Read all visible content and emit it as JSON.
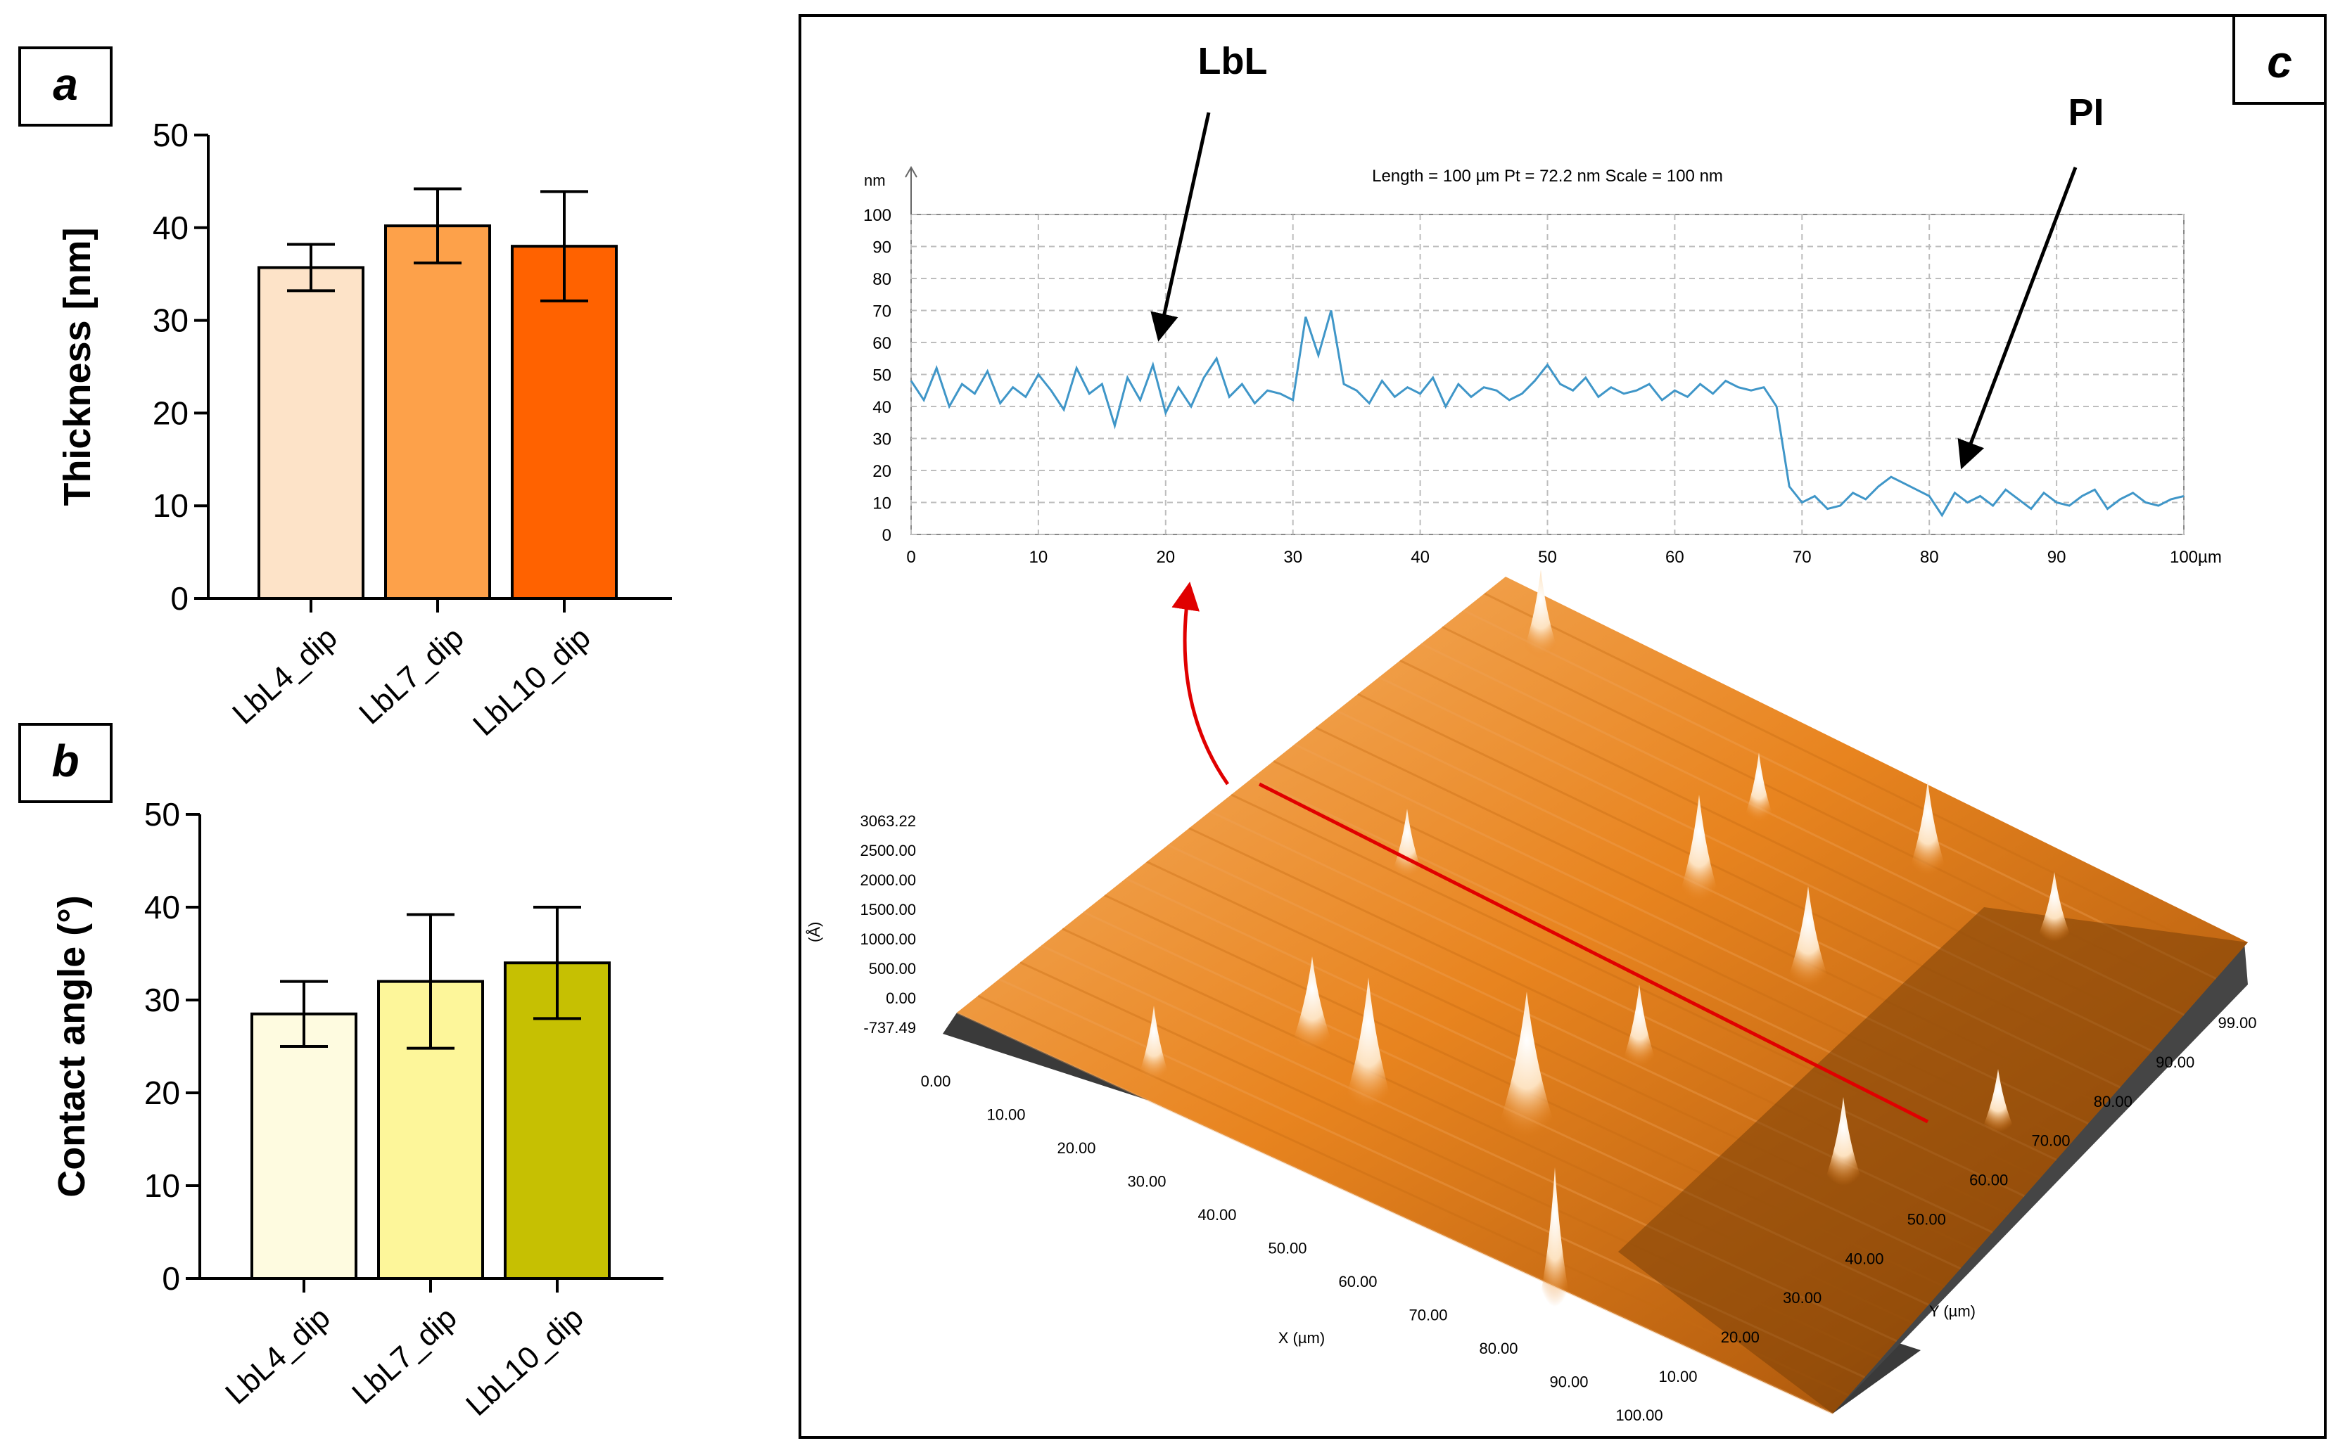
{
  "panels": {
    "a": "a",
    "b": "b",
    "c": "c"
  },
  "chart_data": [
    {
      "id": "a",
      "type": "bar",
      "title": "",
      "ylabel": "Thickness [nm]",
      "xlabel": "",
      "ylim": [
        0,
        50
      ],
      "yticks": [
        "0",
        "10",
        "20",
        "30",
        "40",
        "50"
      ],
      "categories": [
        "LbL4_dip",
        "LbL7_dip",
        "LbL10_dip"
      ],
      "values": [
        35.7,
        40.2,
        38.0
      ],
      "errors": [
        2.5,
        4.0,
        5.9
      ],
      "colors": [
        "#fde3c8",
        "#fda14a",
        "#ff6200"
      ]
    },
    {
      "id": "b",
      "type": "bar",
      "title": "",
      "ylabel": "Contact angle (°)",
      "xlabel": "",
      "ylim": [
        0,
        50
      ],
      "yticks": [
        "0",
        "10",
        "20",
        "30",
        "40",
        "50"
      ],
      "categories": [
        "LbL4_dip",
        "LbL7_dip",
        "LbL10_dip"
      ],
      "values": [
        28.5,
        32.0,
        34.0
      ],
      "errors": [
        3.5,
        7.2,
        6.0
      ],
      "colors": [
        "#fefbe0",
        "#fdf69a",
        "#c6c002"
      ]
    },
    {
      "id": "c-profile",
      "type": "line",
      "title": "Length = 100 µm  Pt = 72.2 nm  Scale = 100 nm",
      "yunit": "nm",
      "xunit": "µm",
      "xlim": [
        0,
        100
      ],
      "ylim": [
        0,
        100
      ],
      "xticks": [
        "0",
        "10",
        "20",
        "30",
        "40",
        "50",
        "60",
        "70",
        "80",
        "90",
        "100"
      ],
      "yticks": [
        "0",
        "10",
        "20",
        "30",
        "40",
        "50",
        "60",
        "70",
        "80",
        "90",
        "100"
      ],
      "annotations": [
        "LbL",
        "PI"
      ],
      "series": [
        {
          "name": "profile",
          "x": [
            0,
            1,
            2,
            3,
            4,
            5,
            6,
            7,
            8,
            9,
            10,
            11,
            12,
            13,
            14,
            15,
            16,
            17,
            18,
            19,
            20,
            21,
            22,
            23,
            24,
            25,
            26,
            27,
            28,
            29,
            30,
            31,
            32,
            33,
            34,
            35,
            36,
            37,
            38,
            39,
            40,
            41,
            42,
            43,
            44,
            45,
            46,
            47,
            48,
            49,
            50,
            51,
            52,
            53,
            54,
            55,
            56,
            57,
            58,
            59,
            60,
            61,
            62,
            63,
            64,
            65,
            66,
            67,
            68,
            69,
            70,
            71,
            72,
            73,
            74,
            75,
            76,
            77,
            78,
            79,
            80,
            81,
            82,
            83,
            84,
            85,
            86,
            87,
            88,
            89,
            90,
            91,
            92,
            93,
            94,
            95,
            96,
            97,
            98,
            99,
            100
          ],
          "y": [
            48,
            42,
            52,
            40,
            47,
            44,
            51,
            41,
            46,
            43,
            50,
            45,
            39,
            52,
            44,
            47,
            34,
            49,
            42,
            53,
            38,
            46,
            40,
            49,
            55,
            43,
            47,
            41,
            45,
            44,
            42,
            68,
            56,
            70,
            47,
            45,
            41,
            48,
            43,
            46,
            44,
            49,
            40,
            47,
            43,
            46,
            45,
            42,
            44,
            48,
            53,
            47,
            45,
            49,
            43,
            46,
            44,
            45,
            47,
            42,
            45,
            43,
            47,
            44,
            48,
            46,
            45,
            46,
            40,
            15,
            10,
            12,
            8,
            9,
            13,
            11,
            15,
            18,
            16,
            14,
            12,
            6,
            13,
            10,
            12,
            9,
            14,
            11,
            8,
            13,
            10,
            9,
            12,
            14,
            8,
            11,
            13,
            10,
            9,
            11,
            12
          ]
        }
      ]
    },
    {
      "id": "c-surface",
      "type": "surface-3d",
      "zunit": "(Å)",
      "zticks": [
        "3063.22",
        "2500.00",
        "2000.00",
        "1500.00",
        "1000.00",
        "500.00",
        "0.00",
        "-737.49"
      ],
      "xlabel": "X (µm)",
      "ylabel": "Y (µm)",
      "xticks": [
        "0.00",
        "10.00",
        "20.00",
        "30.00",
        "40.00",
        "50.00",
        "60.00",
        "70.00",
        "80.00",
        "90.00",
        "100.00"
      ],
      "yticks": [
        "10.00",
        "20.00",
        "30.00",
        "40.00",
        "50.00",
        "60.00",
        "70.00",
        "80.00",
        "90.00",
        "99.00"
      ]
    }
  ]
}
